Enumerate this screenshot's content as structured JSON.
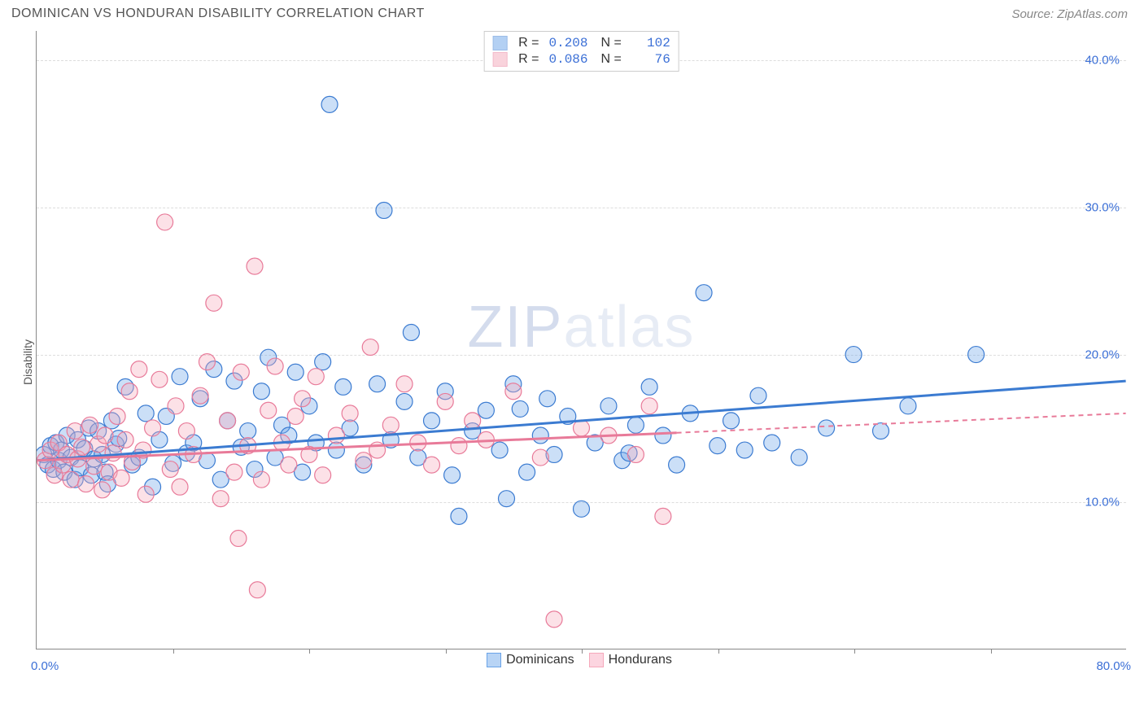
{
  "title": "DOMINICAN VS HONDURAN DISABILITY CORRELATION CHART",
  "source_label": "Source: ZipAtlas.com",
  "watermark": {
    "prefix": "ZIP",
    "suffix": "atlas"
  },
  "ylabel": "Disability",
  "chart": {
    "type": "scatter",
    "xlim": [
      0,
      80
    ],
    "ylim": [
      0,
      42
    ],
    "x_tick_step": 10,
    "x_min_label": "0.0%",
    "x_max_label": "80.0%",
    "y_ticks": [
      10,
      20,
      30,
      40
    ],
    "y_tick_labels": [
      "10.0%",
      "20.0%",
      "30.0%",
      "40.0%"
    ],
    "grid_color": "#dddddd",
    "axis_color": "#888888",
    "background_color": "#ffffff",
    "marker_radius": 10,
    "marker_stroke_width": 1.2,
    "marker_fill_opacity": 0.35,
    "axis_label_color_blue": "#3b6fd6",
    "series": [
      {
        "name": "Dominicans",
        "color": "#6aa3e8",
        "stroke": "#3b7bd1",
        "R": "0.208",
        "N": "102",
        "trend": {
          "x1": 0,
          "y1": 12.8,
          "x2": 80,
          "y2": 18.2,
          "solid_until_x": 80
        },
        "points": [
          [
            0.5,
            13.2
          ],
          [
            0.8,
            12.5
          ],
          [
            1.0,
            13.8
          ],
          [
            1.2,
            12.2
          ],
          [
            1.4,
            14.0
          ],
          [
            1.6,
            12.8
          ],
          [
            1.8,
            13.5
          ],
          [
            2.0,
            12.0
          ],
          [
            2.2,
            14.5
          ],
          [
            2.5,
            13.0
          ],
          [
            2.8,
            11.5
          ],
          [
            3.0,
            14.2
          ],
          [
            3.2,
            12.3
          ],
          [
            3.5,
            13.6
          ],
          [
            3.8,
            15.0
          ],
          [
            4.0,
            11.8
          ],
          [
            4.2,
            12.9
          ],
          [
            4.5,
            14.8
          ],
          [
            4.8,
            13.2
          ],
          [
            5.0,
            12.0
          ],
          [
            5.2,
            11.2
          ],
          [
            5.5,
            15.5
          ],
          [
            5.8,
            13.9
          ],
          [
            6.0,
            14.3
          ],
          [
            6.5,
            17.8
          ],
          [
            7.0,
            12.5
          ],
          [
            7.5,
            13.0
          ],
          [
            8.0,
            16.0
          ],
          [
            8.5,
            11.0
          ],
          [
            9.0,
            14.2
          ],
          [
            9.5,
            15.8
          ],
          [
            10.0,
            12.6
          ],
          [
            10.5,
            18.5
          ],
          [
            11.0,
            13.3
          ],
          [
            11.5,
            14.0
          ],
          [
            12.0,
            17.0
          ],
          [
            12.5,
            12.8
          ],
          [
            13.0,
            19.0
          ],
          [
            13.5,
            11.5
          ],
          [
            14.0,
            15.5
          ],
          [
            14.5,
            18.2
          ],
          [
            15.0,
            13.7
          ],
          [
            15.5,
            14.8
          ],
          [
            16.0,
            12.2
          ],
          [
            16.5,
            17.5
          ],
          [
            17.0,
            19.8
          ],
          [
            17.5,
            13.0
          ],
          [
            18.0,
            15.2
          ],
          [
            18.5,
            14.5
          ],
          [
            19.0,
            18.8
          ],
          [
            19.5,
            12.0
          ],
          [
            20.0,
            16.5
          ],
          [
            20.5,
            14.0
          ],
          [
            21.0,
            19.5
          ],
          [
            21.5,
            37.0
          ],
          [
            22.0,
            13.5
          ],
          [
            22.5,
            17.8
          ],
          [
            23.0,
            15.0
          ],
          [
            24.0,
            12.5
          ],
          [
            25.0,
            18.0
          ],
          [
            25.5,
            29.8
          ],
          [
            26.0,
            14.2
          ],
          [
            27.0,
            16.8
          ],
          [
            27.5,
            21.5
          ],
          [
            28.0,
            13.0
          ],
          [
            29.0,
            15.5
          ],
          [
            30.0,
            17.5
          ],
          [
            30.5,
            11.8
          ],
          [
            31.0,
            9.0
          ],
          [
            32.0,
            14.8
          ],
          [
            33.0,
            16.2
          ],
          [
            34.0,
            13.5
          ],
          [
            34.5,
            10.2
          ],
          [
            35.0,
            18.0
          ],
          [
            35.5,
            16.3
          ],
          [
            36.0,
            12.0
          ],
          [
            37.0,
            14.5
          ],
          [
            37.5,
            17.0
          ],
          [
            38.0,
            13.2
          ],
          [
            39.0,
            15.8
          ],
          [
            40.0,
            9.5
          ],
          [
            41.0,
            14.0
          ],
          [
            42.0,
            16.5
          ],
          [
            43.0,
            12.8
          ],
          [
            43.5,
            13.3
          ],
          [
            44.0,
            15.2
          ],
          [
            45.0,
            17.8
          ],
          [
            46.0,
            14.5
          ],
          [
            47.0,
            12.5
          ],
          [
            48.0,
            16.0
          ],
          [
            49.0,
            24.2
          ],
          [
            50.0,
            13.8
          ],
          [
            51.0,
            15.5
          ],
          [
            52.0,
            13.5
          ],
          [
            53.0,
            17.2
          ],
          [
            54.0,
            14.0
          ],
          [
            56.0,
            13.0
          ],
          [
            58.0,
            15.0
          ],
          [
            60.0,
            20.0
          ],
          [
            62.0,
            14.8
          ],
          [
            64.0,
            16.5
          ],
          [
            69.0,
            20.0
          ]
        ]
      },
      {
        "name": "Hondurans",
        "color": "#f5a8bb",
        "stroke": "#e87a99",
        "R": "0.086",
        "N": "76",
        "trend": {
          "x1": 0,
          "y1": 12.8,
          "x2": 80,
          "y2": 16.0,
          "solid_until_x": 47
        },
        "points": [
          [
            0.6,
            12.8
          ],
          [
            1.0,
            13.5
          ],
          [
            1.3,
            11.8
          ],
          [
            1.6,
            14.0
          ],
          [
            1.9,
            12.5
          ],
          [
            2.2,
            13.2
          ],
          [
            2.5,
            11.5
          ],
          [
            2.8,
            14.8
          ],
          [
            3.0,
            12.9
          ],
          [
            3.3,
            13.7
          ],
          [
            3.6,
            11.2
          ],
          [
            3.9,
            15.2
          ],
          [
            4.2,
            12.4
          ],
          [
            4.5,
            13.9
          ],
          [
            4.8,
            10.8
          ],
          [
            5.0,
            14.5
          ],
          [
            5.3,
            12.0
          ],
          [
            5.6,
            13.3
          ],
          [
            5.9,
            15.8
          ],
          [
            6.2,
            11.6
          ],
          [
            6.5,
            14.2
          ],
          [
            6.8,
            17.5
          ],
          [
            7.0,
            12.7
          ],
          [
            7.5,
            19.0
          ],
          [
            7.8,
            13.5
          ],
          [
            8.0,
            10.5
          ],
          [
            8.5,
            15.0
          ],
          [
            9.0,
            18.3
          ],
          [
            9.4,
            29.0
          ],
          [
            9.8,
            12.2
          ],
          [
            10.2,
            16.5
          ],
          [
            10.5,
            11.0
          ],
          [
            11.0,
            14.8
          ],
          [
            11.5,
            13.2
          ],
          [
            12.0,
            17.2
          ],
          [
            12.5,
            19.5
          ],
          [
            13.0,
            23.5
          ],
          [
            13.5,
            10.2
          ],
          [
            14.0,
            15.5
          ],
          [
            14.5,
            12.0
          ],
          [
            15.0,
            18.8
          ],
          [
            15.5,
            13.8
          ],
          [
            16.0,
            26.0
          ],
          [
            16.5,
            11.5
          ],
          [
            17.0,
            16.2
          ],
          [
            17.5,
            19.2
          ],
          [
            18.0,
            14.0
          ],
          [
            18.5,
            12.5
          ],
          [
            19.0,
            15.8
          ],
          [
            19.5,
            17.0
          ],
          [
            20.0,
            13.2
          ],
          [
            20.5,
            18.5
          ],
          [
            21.0,
            11.8
          ],
          [
            22.0,
            14.5
          ],
          [
            23.0,
            16.0
          ],
          [
            24.0,
            12.8
          ],
          [
            24.5,
            20.5
          ],
          [
            25.0,
            13.5
          ],
          [
            26.0,
            15.2
          ],
          [
            27.0,
            18.0
          ],
          [
            28.0,
            14.0
          ],
          [
            29.0,
            12.5
          ],
          [
            30.0,
            16.8
          ],
          [
            31.0,
            13.8
          ],
          [
            32.0,
            15.5
          ],
          [
            33.0,
            14.2
          ],
          [
            35.0,
            17.5
          ],
          [
            37.0,
            13.0
          ],
          [
            38.0,
            2.0
          ],
          [
            40.0,
            15.0
          ],
          [
            42.0,
            14.5
          ],
          [
            44.0,
            13.2
          ],
          [
            45.0,
            16.5
          ],
          [
            46.0,
            9.0
          ],
          [
            14.8,
            7.5
          ],
          [
            16.2,
            4.0
          ]
        ]
      }
    ],
    "bottom_legend": [
      {
        "label": "Dominicans",
        "fill": "#b8d4f5",
        "stroke": "#6aa3e8"
      },
      {
        "label": "Hondurans",
        "fill": "#fcd5e0",
        "stroke": "#f5a8bb"
      }
    ]
  }
}
